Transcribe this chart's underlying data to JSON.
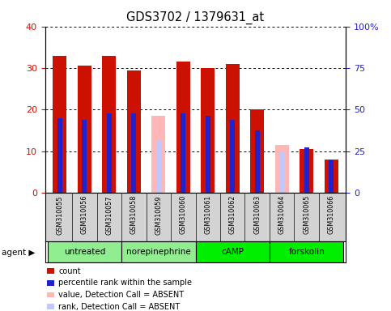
{
  "title": "GDS3702 / 1379631_at",
  "samples": [
    "GSM310055",
    "GSM310056",
    "GSM310057",
    "GSM310058",
    "GSM310059",
    "GSM310060",
    "GSM310061",
    "GSM310062",
    "GSM310063",
    "GSM310064",
    "GSM310065",
    "GSM310066"
  ],
  "count_values": [
    33,
    30.5,
    33,
    29.5,
    0,
    31.5,
    30,
    31,
    20,
    0,
    10.5,
    8
  ],
  "rank_values": [
    18,
    17.5,
    19,
    19,
    0,
    19,
    18.5,
    17.5,
    15,
    0,
    11,
    8
  ],
  "absent_count": [
    0,
    0,
    0,
    0,
    18.5,
    0,
    0,
    0,
    0,
    11.5,
    0,
    0
  ],
  "absent_rank": [
    0,
    0,
    0,
    0,
    12.5,
    0,
    0,
    0,
    0,
    10,
    0,
    0
  ],
  "detection": [
    "P",
    "P",
    "P",
    "P",
    "A",
    "P",
    "P",
    "P",
    "P",
    "A",
    "P",
    "P"
  ],
  "ylim_left": [
    0,
    40
  ],
  "ylim_right": [
    0,
    100
  ],
  "yticks_left": [
    0,
    10,
    20,
    30,
    40
  ],
  "ytick_labels_left": [
    "0",
    "10",
    "20",
    "30",
    "40"
  ],
  "yticks_right_vals": [
    0,
    10,
    20,
    30,
    40
  ],
  "ytick_labels_right": [
    "0",
    "25",
    "50",
    "75",
    "100%"
  ],
  "color_red": "#CC1100",
  "color_blue": "#2222CC",
  "color_pink": "#FFB6B6",
  "color_lightblue": "#C0C8FF",
  "bar_width": 0.55,
  "rank_bar_width": 0.2,
  "groups_info": [
    {
      "label": "untreated",
      "start": 0,
      "end": 2,
      "color": "#90EE90"
    },
    {
      "label": "norepinephrine",
      "start": 3,
      "end": 5,
      "color": "#90EE90"
    },
    {
      "label": "cAMP",
      "start": 6,
      "end": 8,
      "color": "#00EE00"
    },
    {
      "label": "forskolin",
      "start": 9,
      "end": 11,
      "color": "#00EE00"
    }
  ],
  "tick_area_color": "#D3D3D3",
  "legend_items": [
    {
      "color": "#CC1100",
      "label": "count"
    },
    {
      "color": "#2222CC",
      "label": "percentile rank within the sample"
    },
    {
      "color": "#FFB6B6",
      "label": "value, Detection Call = ABSENT"
    },
    {
      "color": "#C0C8FF",
      "label": "rank, Detection Call = ABSENT"
    }
  ]
}
